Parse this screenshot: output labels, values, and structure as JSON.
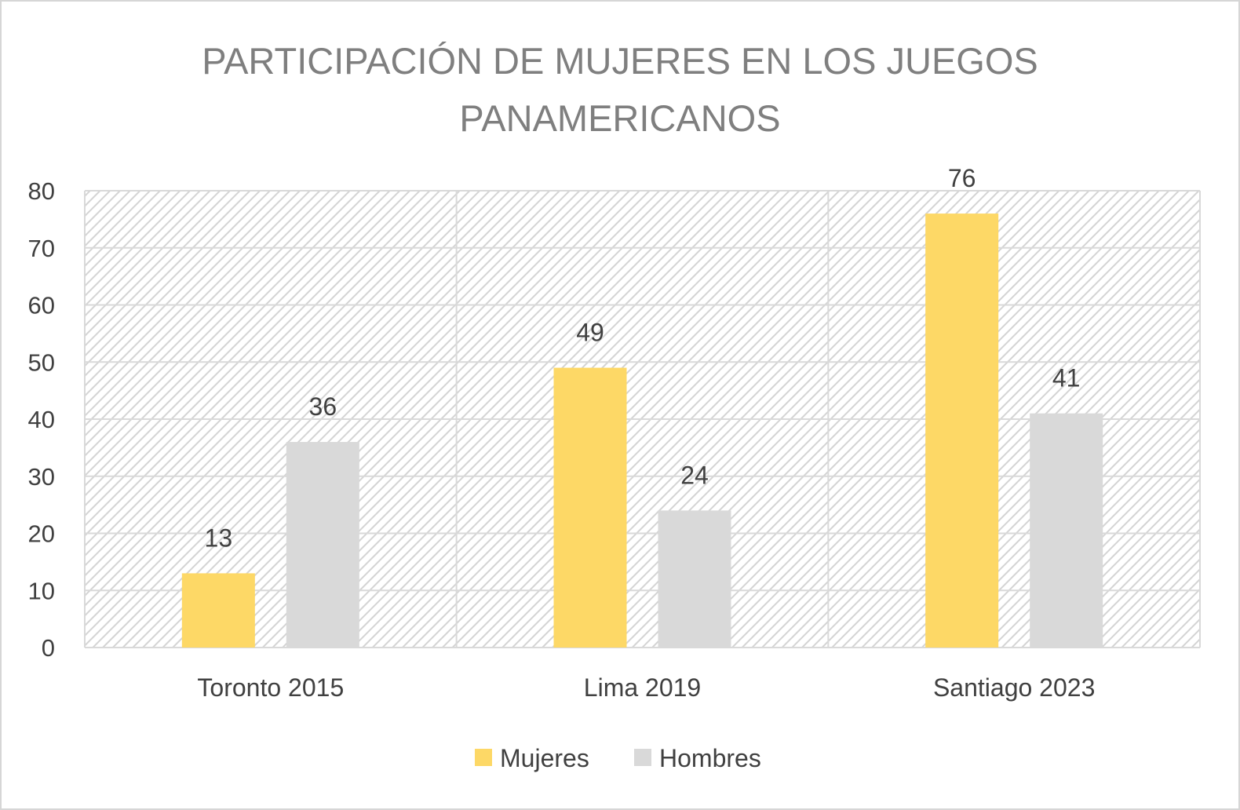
{
  "chart_data": {
    "type": "bar",
    "title_lines": [
      "PARTICIPACIÓN DE MUJERES EN LOS JUEGOS",
      "PANAMERICANOS"
    ],
    "categories": [
      "Toronto 2015",
      "Lima 2019",
      "Santiago 2023"
    ],
    "series": [
      {
        "name": "Mujeres",
        "values": [
          13,
          49,
          76
        ],
        "color": "#FDD866"
      },
      {
        "name": "Hombres",
        "values": [
          36,
          24,
          41
        ],
        "color": "#D9D9D9"
      }
    ],
    "ylim": [
      0,
      80
    ],
    "yticks": [
      0,
      10,
      20,
      30,
      40,
      50,
      60,
      70,
      80
    ],
    "grid": true,
    "plot_background": "hatched",
    "legend_position": "bottom",
    "data_labels": true
  }
}
